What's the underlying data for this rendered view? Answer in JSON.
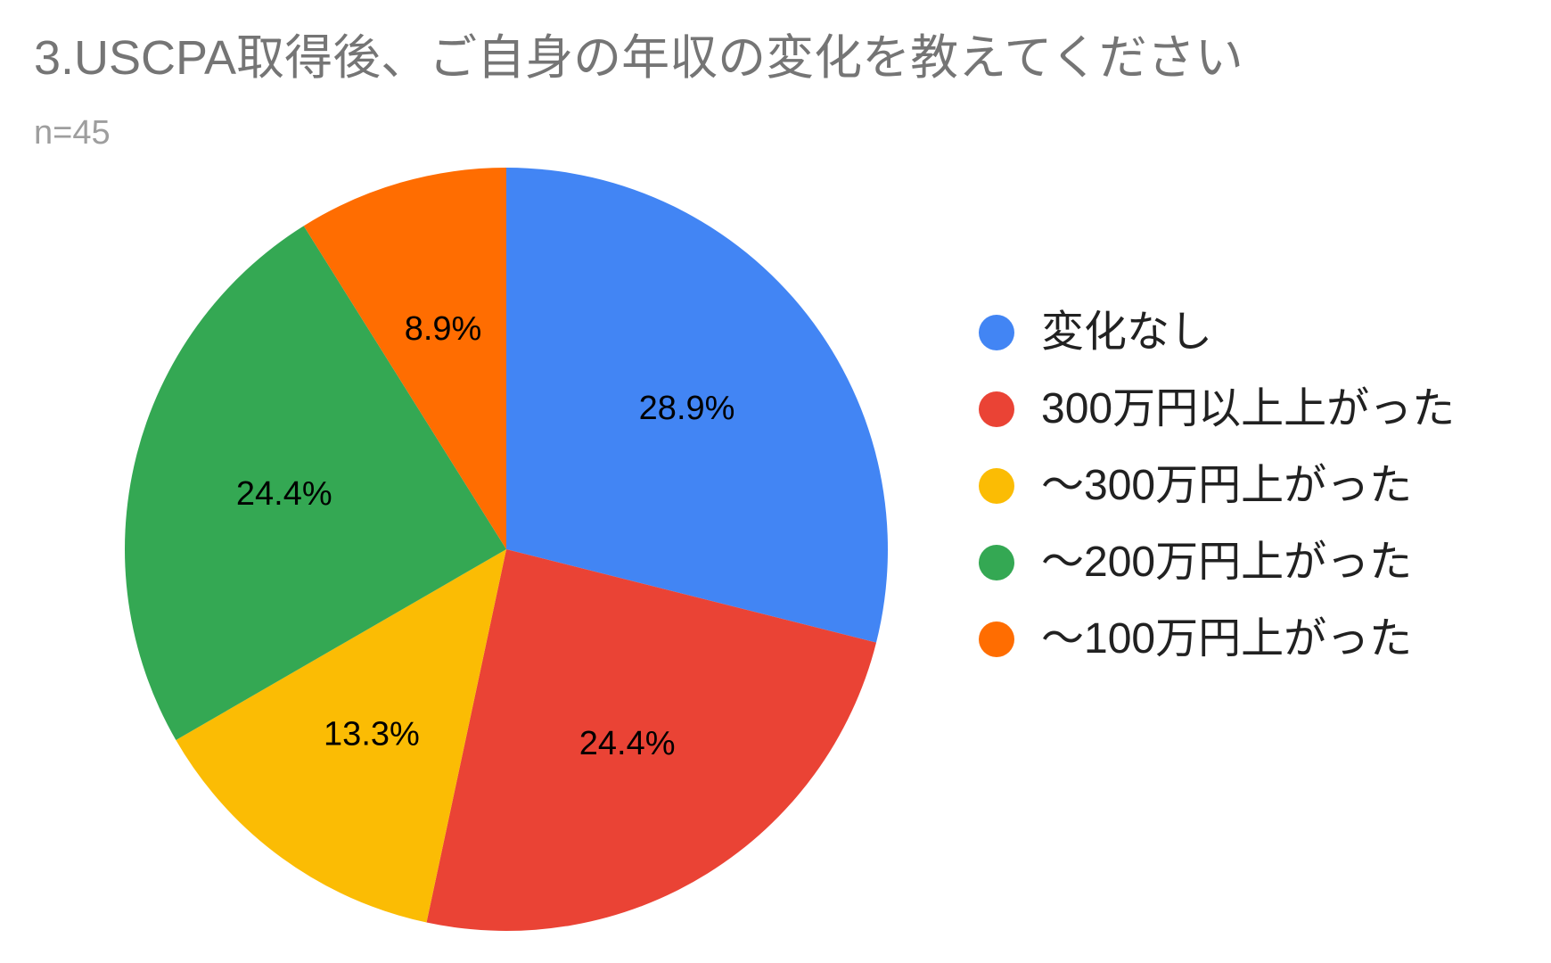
{
  "chart_data": {
    "type": "pie",
    "title": "3.USCPA取得後、ご自身の年収の変化を教えてください",
    "subtitle": "n=45",
    "legend_position": "right",
    "slices": [
      {
        "label": "変化なし",
        "value": 28.9,
        "display": "28.9%",
        "color": "#4285f4"
      },
      {
        "label": "300万円以上上がった",
        "value": 24.4,
        "display": "24.4%",
        "color": "#ea4335"
      },
      {
        "label": "〜300万円上がった",
        "value": 13.3,
        "display": "13.3%",
        "color": "#fbbc04"
      },
      {
        "label": "〜200万円上がった",
        "value": 24.4,
        "display": "24.4%",
        "color": "#34a853"
      },
      {
        "label": "〜100万円上がった",
        "value": 8.9,
        "display": "8.9%",
        "color": "#ff6d01"
      }
    ]
  }
}
